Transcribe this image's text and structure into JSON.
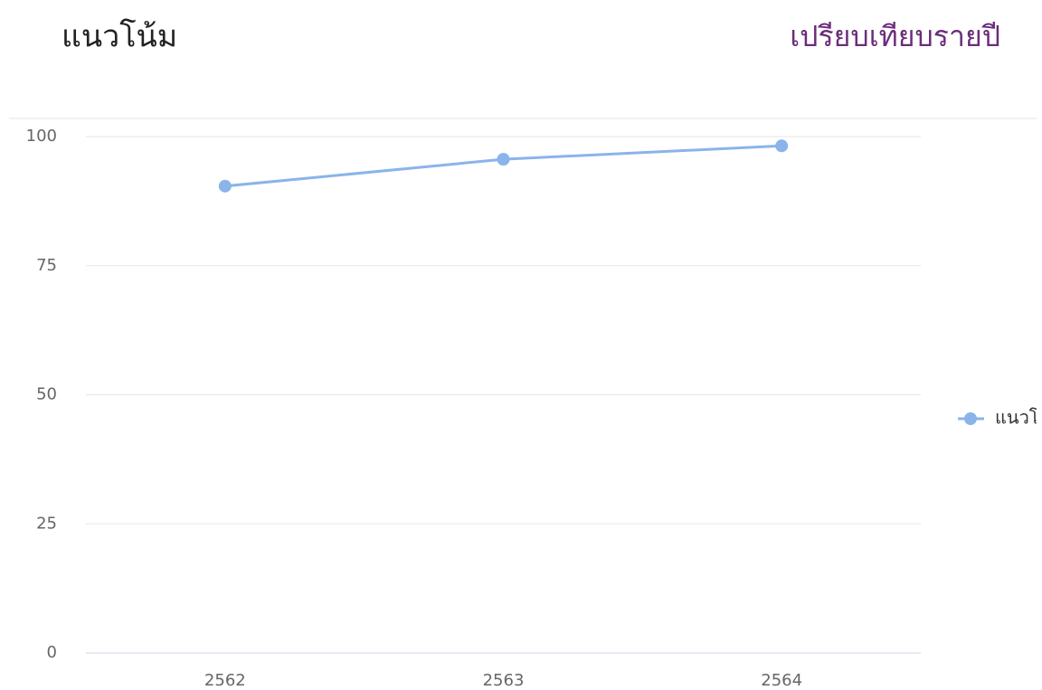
{
  "chart_data": {
    "type": "line",
    "title": "แนวโน้ม",
    "subtitle": "เปรียบเทียบรายปี",
    "categories": [
      "2562",
      "2563",
      "2564"
    ],
    "series": [
      {
        "name": "แนวโน้ม",
        "color": "#8ab4ea",
        "values": [
          90.4,
          95.6,
          98.2
        ]
      }
    ],
    "ylim": [
      0,
      100
    ],
    "yticks": [
      0,
      25,
      50,
      75,
      100
    ],
    "grid": true,
    "legend": "right"
  }
}
